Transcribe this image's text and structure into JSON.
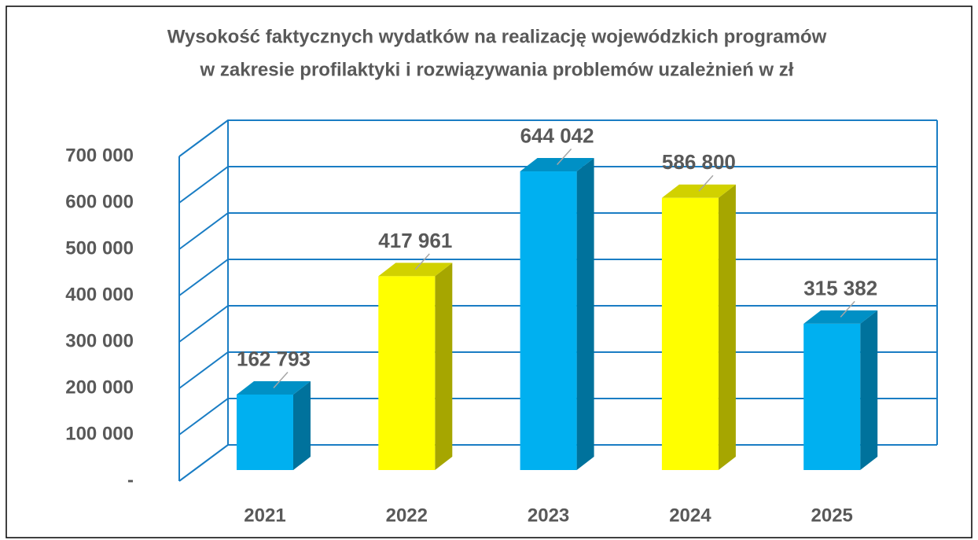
{
  "chart_data": {
    "type": "bar3d",
    "title": [
      "Wysokość faktycznych wydatków na realizację wojewódzkich programów",
      "w zakresie profilaktyki i rozwiązywania problemów uzależnień w zł"
    ],
    "categories": [
      "2021",
      "2022",
      "2023",
      "2024",
      "2025"
    ],
    "values": [
      162793,
      417961,
      644042,
      586800,
      315382
    ],
    "value_labels": [
      "162 793",
      "417 961",
      "644 042",
      "586 800",
      "315 382"
    ],
    "colors": [
      "#00b0f0",
      "#ffff00",
      "#00b0f0",
      "#ffff00",
      "#00b0f0"
    ],
    "ylim": [
      0,
      700000
    ],
    "yticks": [
      {
        "value": 0,
        "label": "-"
      },
      {
        "value": 100000,
        "label": "100 000"
      },
      {
        "value": 200000,
        "label": "200 000"
      },
      {
        "value": 300000,
        "label": "300 000"
      },
      {
        "value": 400000,
        "label": "400 000"
      },
      {
        "value": 500000,
        "label": "500 000"
      },
      {
        "value": 600000,
        "label": "600 000"
      },
      {
        "value": 700000,
        "label": "700 000"
      }
    ],
    "grid": true
  }
}
